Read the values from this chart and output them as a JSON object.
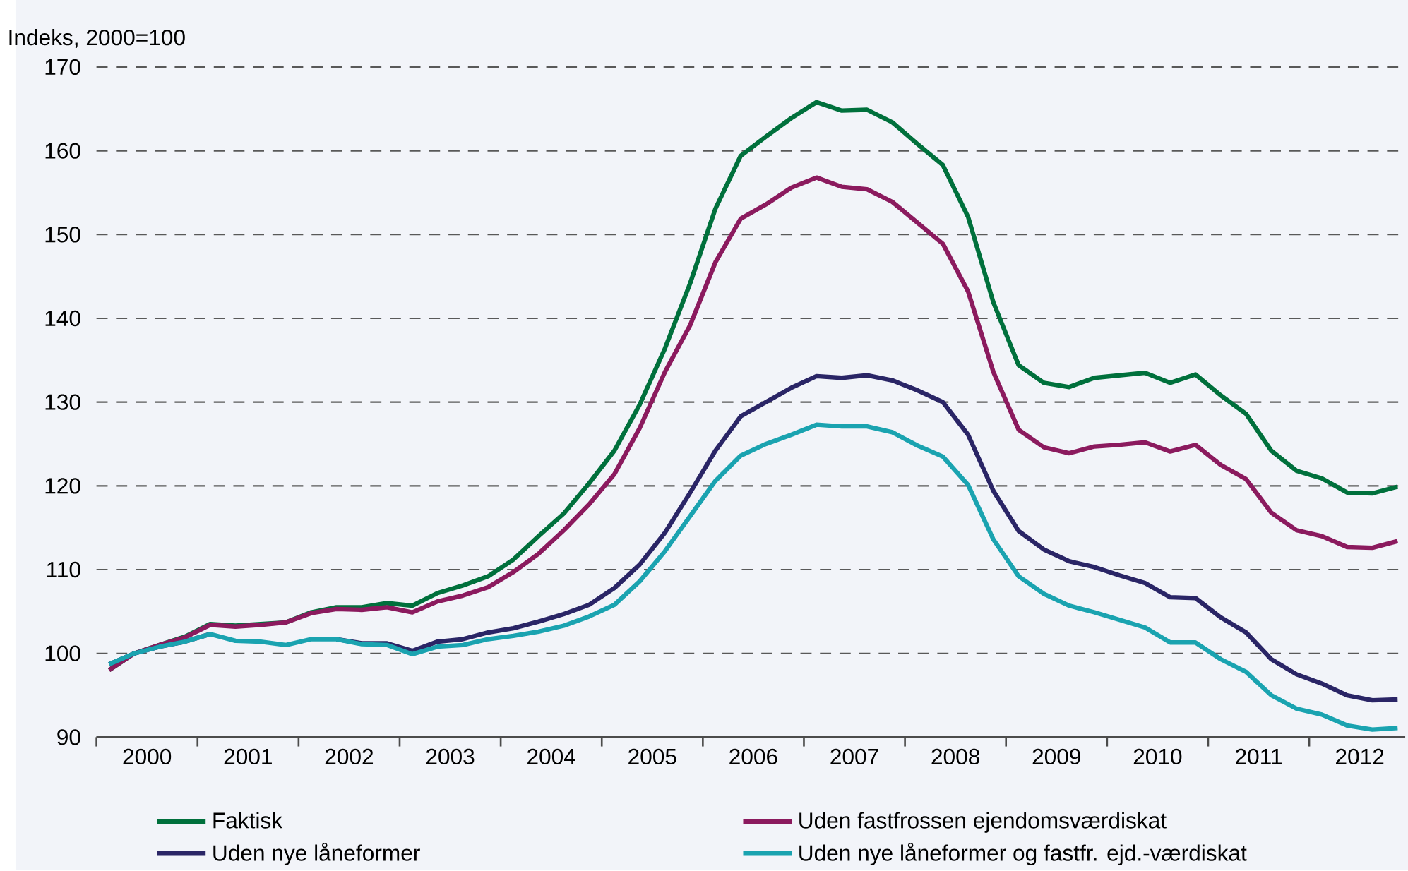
{
  "chart_data": {
    "type": "line",
    "ylabel": "Indeks, 2000=100",
    "x": [
      2000.125,
      2000.375,
      2000.625,
      2000.875,
      2001.125,
      2001.375,
      2001.625,
      2001.875,
      2002.125,
      2002.375,
      2002.625,
      2002.875,
      2003.125,
      2003.375,
      2003.625,
      2003.875,
      2004.125,
      2004.375,
      2004.625,
      2004.875,
      2005.125,
      2005.375,
      2005.625,
      2005.875,
      2006.125,
      2006.375,
      2006.625,
      2006.875,
      2007.125,
      2007.375,
      2007.625,
      2007.875,
      2008.125,
      2008.375,
      2008.625,
      2008.875,
      2009.125,
      2009.375,
      2009.625,
      2009.875,
      2010.125,
      2010.375,
      2010.625,
      2010.875,
      2011.125,
      2011.375,
      2011.625,
      2011.875,
      2012.125,
      2012.375,
      2012.625,
      2012.875
    ],
    "series": [
      {
        "name": "Faktisk",
        "color": "#00703c",
        "values": [
          98.0,
          100.0,
          101.0,
          102.0,
          103.5,
          103.3,
          103.5,
          103.7,
          104.9,
          105.5,
          105.5,
          106.0,
          105.7,
          107.2,
          108.1,
          109.2,
          111.2,
          114.0,
          116.7,
          120.3,
          124.2,
          129.7,
          136.4,
          144.2,
          153.1,
          159.4,
          161.7,
          163.9,
          165.8,
          164.8,
          164.9,
          163.4,
          160.8,
          158.3,
          152.1,
          141.9,
          134.4,
          132.3,
          131.8,
          132.9,
          133.2,
          133.5,
          132.3,
          133.3,
          130.8,
          128.6,
          124.2,
          121.8,
          120.9,
          119.2,
          119.1,
          119.9
        ]
      },
      {
        "name": "Uden fastfrossen ejendomsværdiskat",
        "color": "#8b1a5e",
        "values": [
          98.0,
          100.0,
          101.0,
          101.9,
          103.4,
          103.2,
          103.4,
          103.7,
          104.8,
          105.3,
          105.2,
          105.5,
          104.9,
          106.2,
          106.9,
          107.9,
          109.7,
          111.9,
          114.7,
          117.8,
          121.4,
          126.9,
          133.6,
          139.2,
          146.7,
          151.9,
          153.6,
          155.6,
          156.8,
          155.7,
          155.4,
          153.9,
          151.4,
          148.9,
          143.2,
          133.6,
          126.7,
          124.6,
          123.9,
          124.7,
          124.9,
          125.2,
          124.1,
          124.9,
          122.5,
          120.8,
          116.8,
          114.7,
          114.0,
          112.7,
          112.6,
          113.4
        ]
      },
      {
        "name": "Uden nye låneformer",
        "color": "#2a2566",
        "values": [
          98.7,
          100.0,
          100.8,
          101.4,
          102.3,
          null,
          null,
          null,
          null,
          101.7,
          101.2,
          101.2,
          100.3,
          101.4,
          101.7,
          102.5,
          103.0,
          103.8,
          104.7,
          105.8,
          107.8,
          110.6,
          114.4,
          119.2,
          124.2,
          128.3,
          130.0,
          131.7,
          133.1,
          132.9,
          133.2,
          132.6,
          131.4,
          130.0,
          126.1,
          119.4,
          114.6,
          112.4,
          111.0,
          110.3,
          109.3,
          108.4,
          106.7,
          106.6,
          104.3,
          102.5,
          99.3,
          97.5,
          96.4,
          95.0,
          94.4,
          94.5
        ]
      },
      {
        "name": "Uden nye låneformer og fastfr. ejd.-værdiskat",
        "color": "#1aa3b0",
        "values": [
          98.7,
          100.0,
          100.8,
          101.4,
          102.3,
          101.5,
          101.4,
          101.0,
          101.7,
          101.7,
          101.1,
          101.0,
          99.9,
          100.8,
          101.0,
          101.7,
          102.1,
          102.6,
          103.3,
          104.4,
          105.8,
          108.6,
          112.2,
          116.4,
          120.6,
          123.6,
          125.0,
          126.1,
          127.3,
          127.1,
          127.1,
          126.4,
          124.8,
          123.5,
          120.1,
          113.6,
          109.2,
          107.1,
          105.7,
          104.9,
          104.0,
          103.1,
          101.3,
          101.3,
          99.3,
          97.8,
          95.0,
          93.4,
          92.7,
          91.4,
          90.9,
          91.1
        ]
      }
    ],
    "xlim": [
      2000,
      2012.95
    ],
    "xticks": [
      {
        "value": 2000,
        "label": null
      },
      {
        "value": 2000.5,
        "label": "2000"
      },
      {
        "value": 2001,
        "label": null
      },
      {
        "value": 2001.5,
        "label": "2001"
      },
      {
        "value": 2002,
        "label": null
      },
      {
        "value": 2002.5,
        "label": "2002"
      },
      {
        "value": 2003,
        "label": null
      },
      {
        "value": 2003.5,
        "label": "2003"
      },
      {
        "value": 2004,
        "label": null
      },
      {
        "value": 2004.5,
        "label": "2004"
      },
      {
        "value": 2005,
        "label": null
      },
      {
        "value": 2005.5,
        "label": "2005"
      },
      {
        "value": 2006,
        "label": null
      },
      {
        "value": 2006.5,
        "label": "2006"
      },
      {
        "value": 2007,
        "label": null
      },
      {
        "value": 2007.5,
        "label": "2007"
      },
      {
        "value": 2008,
        "label": null
      },
      {
        "value": 2008.5,
        "label": "2008"
      },
      {
        "value": 2009,
        "label": null
      },
      {
        "value": 2009.5,
        "label": "2009"
      },
      {
        "value": 2010,
        "label": null
      },
      {
        "value": 2010.5,
        "label": "2010"
      },
      {
        "value": 2011,
        "label": null
      },
      {
        "value": 2011.5,
        "label": "2011"
      },
      {
        "value": 2012,
        "label": null
      },
      {
        "value": 2012.5,
        "label": "2012"
      }
    ],
    "ylim": [
      90,
      170
    ],
    "yticks": [
      90,
      100,
      110,
      120,
      130,
      140,
      150,
      160,
      170
    ],
    "grid": "y",
    "legend": "bottom",
    "marker": "none",
    "line_style": "solid"
  }
}
